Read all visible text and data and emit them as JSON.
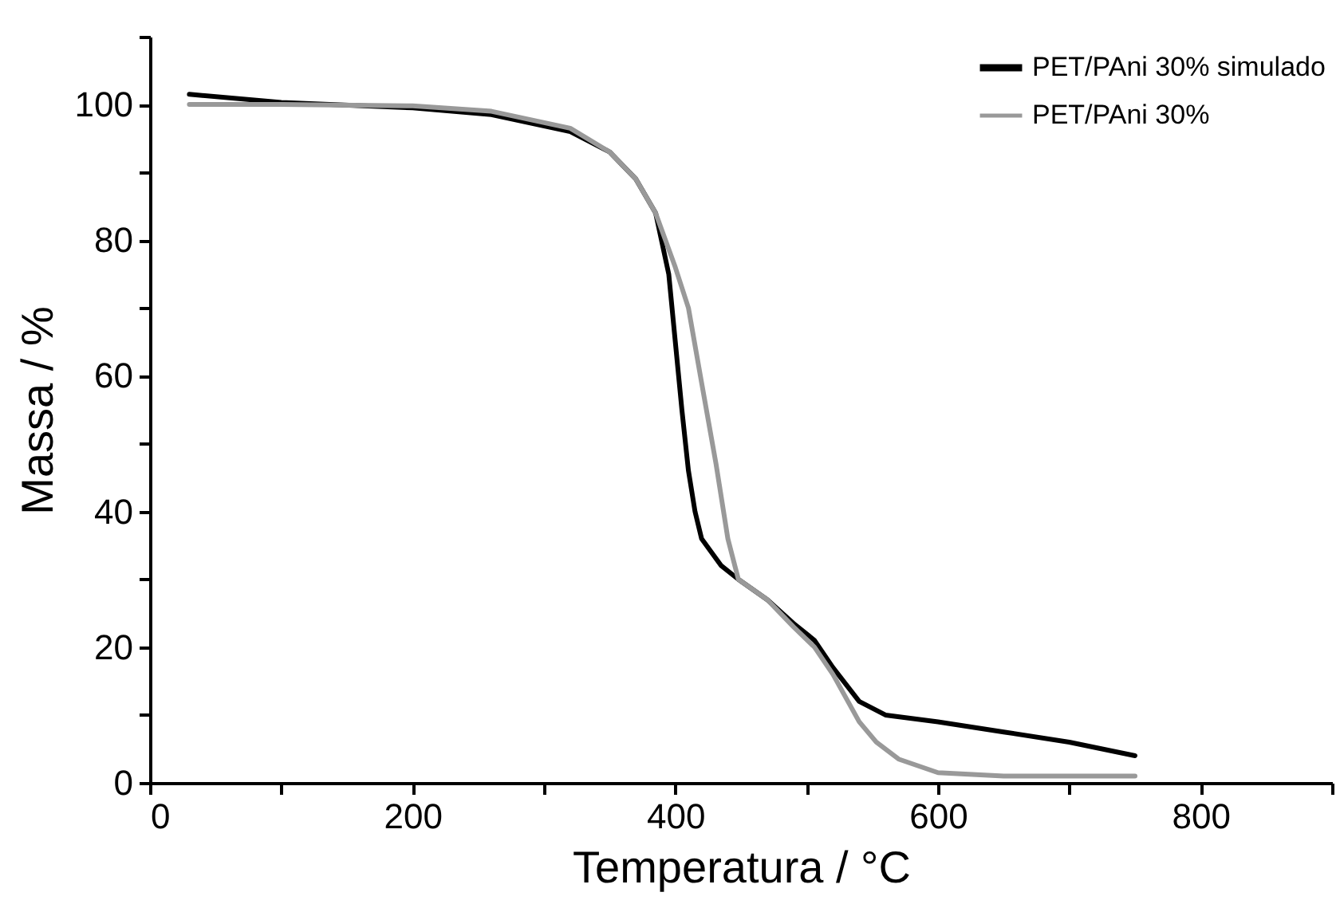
{
  "chart_data": {
    "type": "line",
    "xlabel": "Temperatura / °C",
    "ylabel": "Massa / %",
    "xlim": [
      0,
      900
    ],
    "ylim": [
      0,
      110
    ],
    "xticks": [
      0,
      {
        "value": 100,
        "label": null
      },
      200,
      {
        "value": 300,
        "label": null
      },
      400,
      {
        "value": 500,
        "label": null
      },
      600,
      {
        "value": 700,
        "label": null
      },
      800,
      {
        "value": 900,
        "label": null
      }
    ],
    "yticks": [
      0,
      {
        "value": 10,
        "label": null
      },
      20,
      {
        "value": 30,
        "label": null
      },
      40,
      {
        "value": 50,
        "label": null
      },
      60,
      {
        "value": 70,
        "label": null
      },
      80,
      {
        "value": 90,
        "label": null
      },
      100,
      {
        "value": 110,
        "label": null
      }
    ],
    "grid": false,
    "legend": "top right",
    "marker": "none",
    "line_style": "solid",
    "series": [
      {
        "name": "PET/PAni 30% simulado",
        "color": "#000000",
        "x": [
          30,
          100,
          200,
          260,
          320,
          350,
          370,
          385,
          395,
          400,
          405,
          410,
          415,
          420,
          435,
          448,
          470,
          490,
          506,
          520,
          540,
          560,
          600,
          650,
          700,
          750
        ],
        "values": [
          101.5,
          100.3,
          99.5,
          98.5,
          96,
          93,
          89,
          84,
          75,
          65,
          55,
          46,
          40,
          36,
          32,
          30,
          27,
          23.5,
          21,
          17,
          12,
          10,
          9,
          7.5,
          6,
          4
        ]
      },
      {
        "name": "PET/PAni 30%",
        "color": "#999999",
        "x": [
          30,
          100,
          200,
          260,
          320,
          350,
          370,
          385,
          400,
          410,
          420,
          431,
          440,
          448,
          470,
          490,
          506,
          520,
          540,
          553,
          570,
          600,
          650,
          750
        ],
        "values": [
          100,
          100,
          99.8,
          99,
          96.5,
          93,
          89,
          84,
          76,
          70,
          59,
          47,
          36,
          30,
          27,
          23,
          20,
          16,
          9,
          6,
          3.5,
          1.5,
          1,
          1
        ]
      }
    ]
  }
}
